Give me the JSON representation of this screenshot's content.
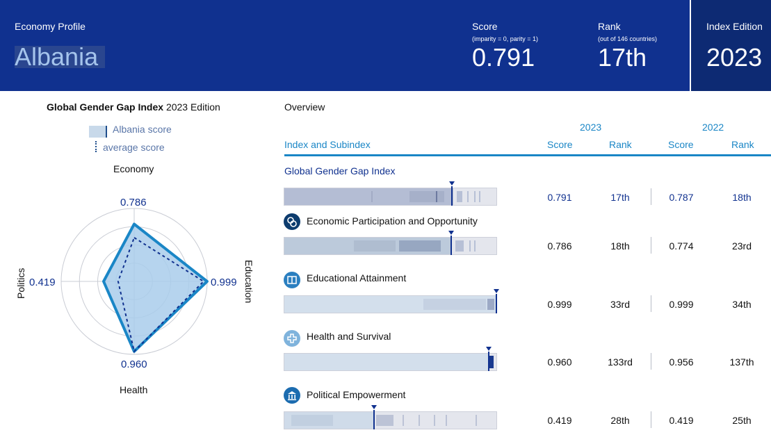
{
  "header": {
    "profile_label": "Economy Profile",
    "country": "Albania",
    "score_label": "Score",
    "score_sub": "(imparity = 0, parity = 1)",
    "score_value": "0.791",
    "rank_label": "Rank",
    "rank_sub": "(out of 146 countries)",
    "rank_value": "17th",
    "edition_label": "Index Edition",
    "edition_value": "2023"
  },
  "radar": {
    "title_bold": "Global Gender Gap Index",
    "title_rest": "2023 Edition",
    "legend_country": "Albania score",
    "legend_average": "average score",
    "axes": {
      "economy": {
        "label": "Economy",
        "value": "0.786"
      },
      "education": {
        "label": "Education",
        "value": "0.999"
      },
      "health": {
        "label": "Health",
        "value": "0.960"
      },
      "politics": {
        "label": "Politics",
        "value": "0.419"
      }
    }
  },
  "overview": {
    "title": "Overview",
    "year_current": "2023",
    "year_previous": "2022",
    "col_index": "Index and Subindex",
    "col_score": "Score",
    "col_rank": "Rank",
    "rows": [
      {
        "name": "Global Gender Gap Index",
        "score": "0.791",
        "rank": "17th",
        "prev_score": "0.787",
        "prev_rank": "18th",
        "value": 0.791
      },
      {
        "name": "Economic Participation and Opportunity",
        "score": "0.786",
        "rank": "18th",
        "prev_score": "0.774",
        "prev_rank": "23rd",
        "value": 0.786
      },
      {
        "name": "Educational Attainment",
        "score": "0.999",
        "rank": "33rd",
        "prev_score": "0.999",
        "prev_rank": "34th",
        "value": 0.999
      },
      {
        "name": "Health and Survival",
        "score": "0.960",
        "rank": "133rd",
        "prev_score": "0.956",
        "prev_rank": "137th",
        "value": 0.96
      },
      {
        "name": "Political Empowerment",
        "score": "0.419",
        "rank": "28th",
        "prev_score": "0.419",
        "prev_rank": "25th",
        "value": 0.419
      }
    ]
  },
  "colors": {
    "header": "#10318f",
    "accent": "#1a86c6",
    "navy": "#10318f"
  }
}
